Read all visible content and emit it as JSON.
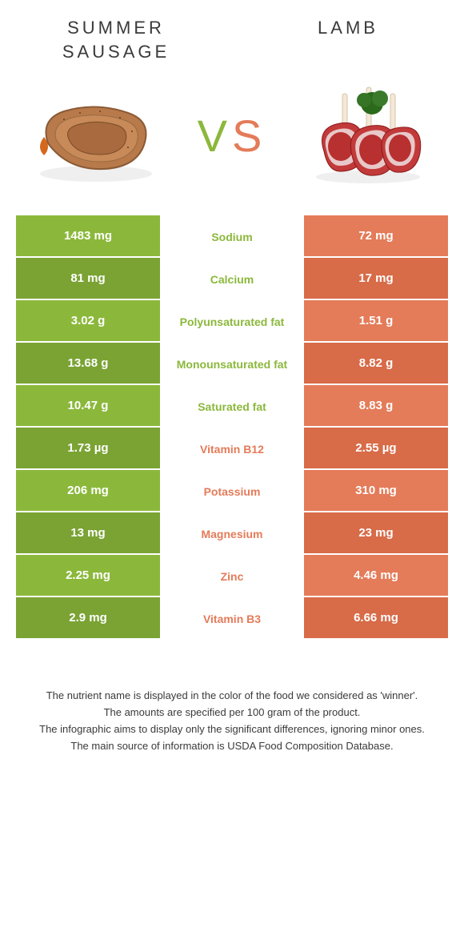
{
  "header": {
    "left_title": "SUMMER SAUSAGE",
    "right_title": "LAMB",
    "vs_v": "V",
    "vs_s": "S"
  },
  "colors": {
    "left": "#8bb83b",
    "left_alt": "#7aa334",
    "right": "#e47b59",
    "right_alt": "#d86b48",
    "text": "#3a3a3a",
    "background": "#ffffff"
  },
  "table": {
    "rows": [
      {
        "left": "1483 mg",
        "label": "Sodium",
        "right": "72 mg",
        "winner": "left"
      },
      {
        "left": "81 mg",
        "label": "Calcium",
        "right": "17 mg",
        "winner": "left"
      },
      {
        "left": "3.02 g",
        "label": "Polyunsaturated fat",
        "right": "1.51 g",
        "winner": "left"
      },
      {
        "left": "13.68 g",
        "label": "Monounsaturated fat",
        "right": "8.82 g",
        "winner": "left"
      },
      {
        "left": "10.47 g",
        "label": "Saturated fat",
        "right": "8.83 g",
        "winner": "left"
      },
      {
        "left": "1.73 µg",
        "label": "Vitamin B12",
        "right": "2.55 µg",
        "winner": "right"
      },
      {
        "left": "206 mg",
        "label": "Potassium",
        "right": "310 mg",
        "winner": "right"
      },
      {
        "left": "13 mg",
        "label": "Magnesium",
        "right": "23 mg",
        "winner": "right"
      },
      {
        "left": "2.25 mg",
        "label": "Zinc",
        "right": "4.46 mg",
        "winner": "right"
      },
      {
        "left": "2.9 mg",
        "label": "Vitamin B3",
        "right": "6.66 mg",
        "winner": "right"
      }
    ]
  },
  "footer": {
    "line1": "The nutrient name is displayed in the color of the food we considered as 'winner'.",
    "line2": "The amounts are specified per 100 gram of the product.",
    "line3": "The infographic aims to display only the significant differences, ignoring minor ones.",
    "line4": "The main source of information is USDA Food Composition Database."
  },
  "typography": {
    "title_fontsize": 22,
    "title_letterspacing": 4,
    "vs_fontsize": 56,
    "value_fontsize": 15,
    "label_fontsize": 14,
    "footer_fontsize": 13
  }
}
